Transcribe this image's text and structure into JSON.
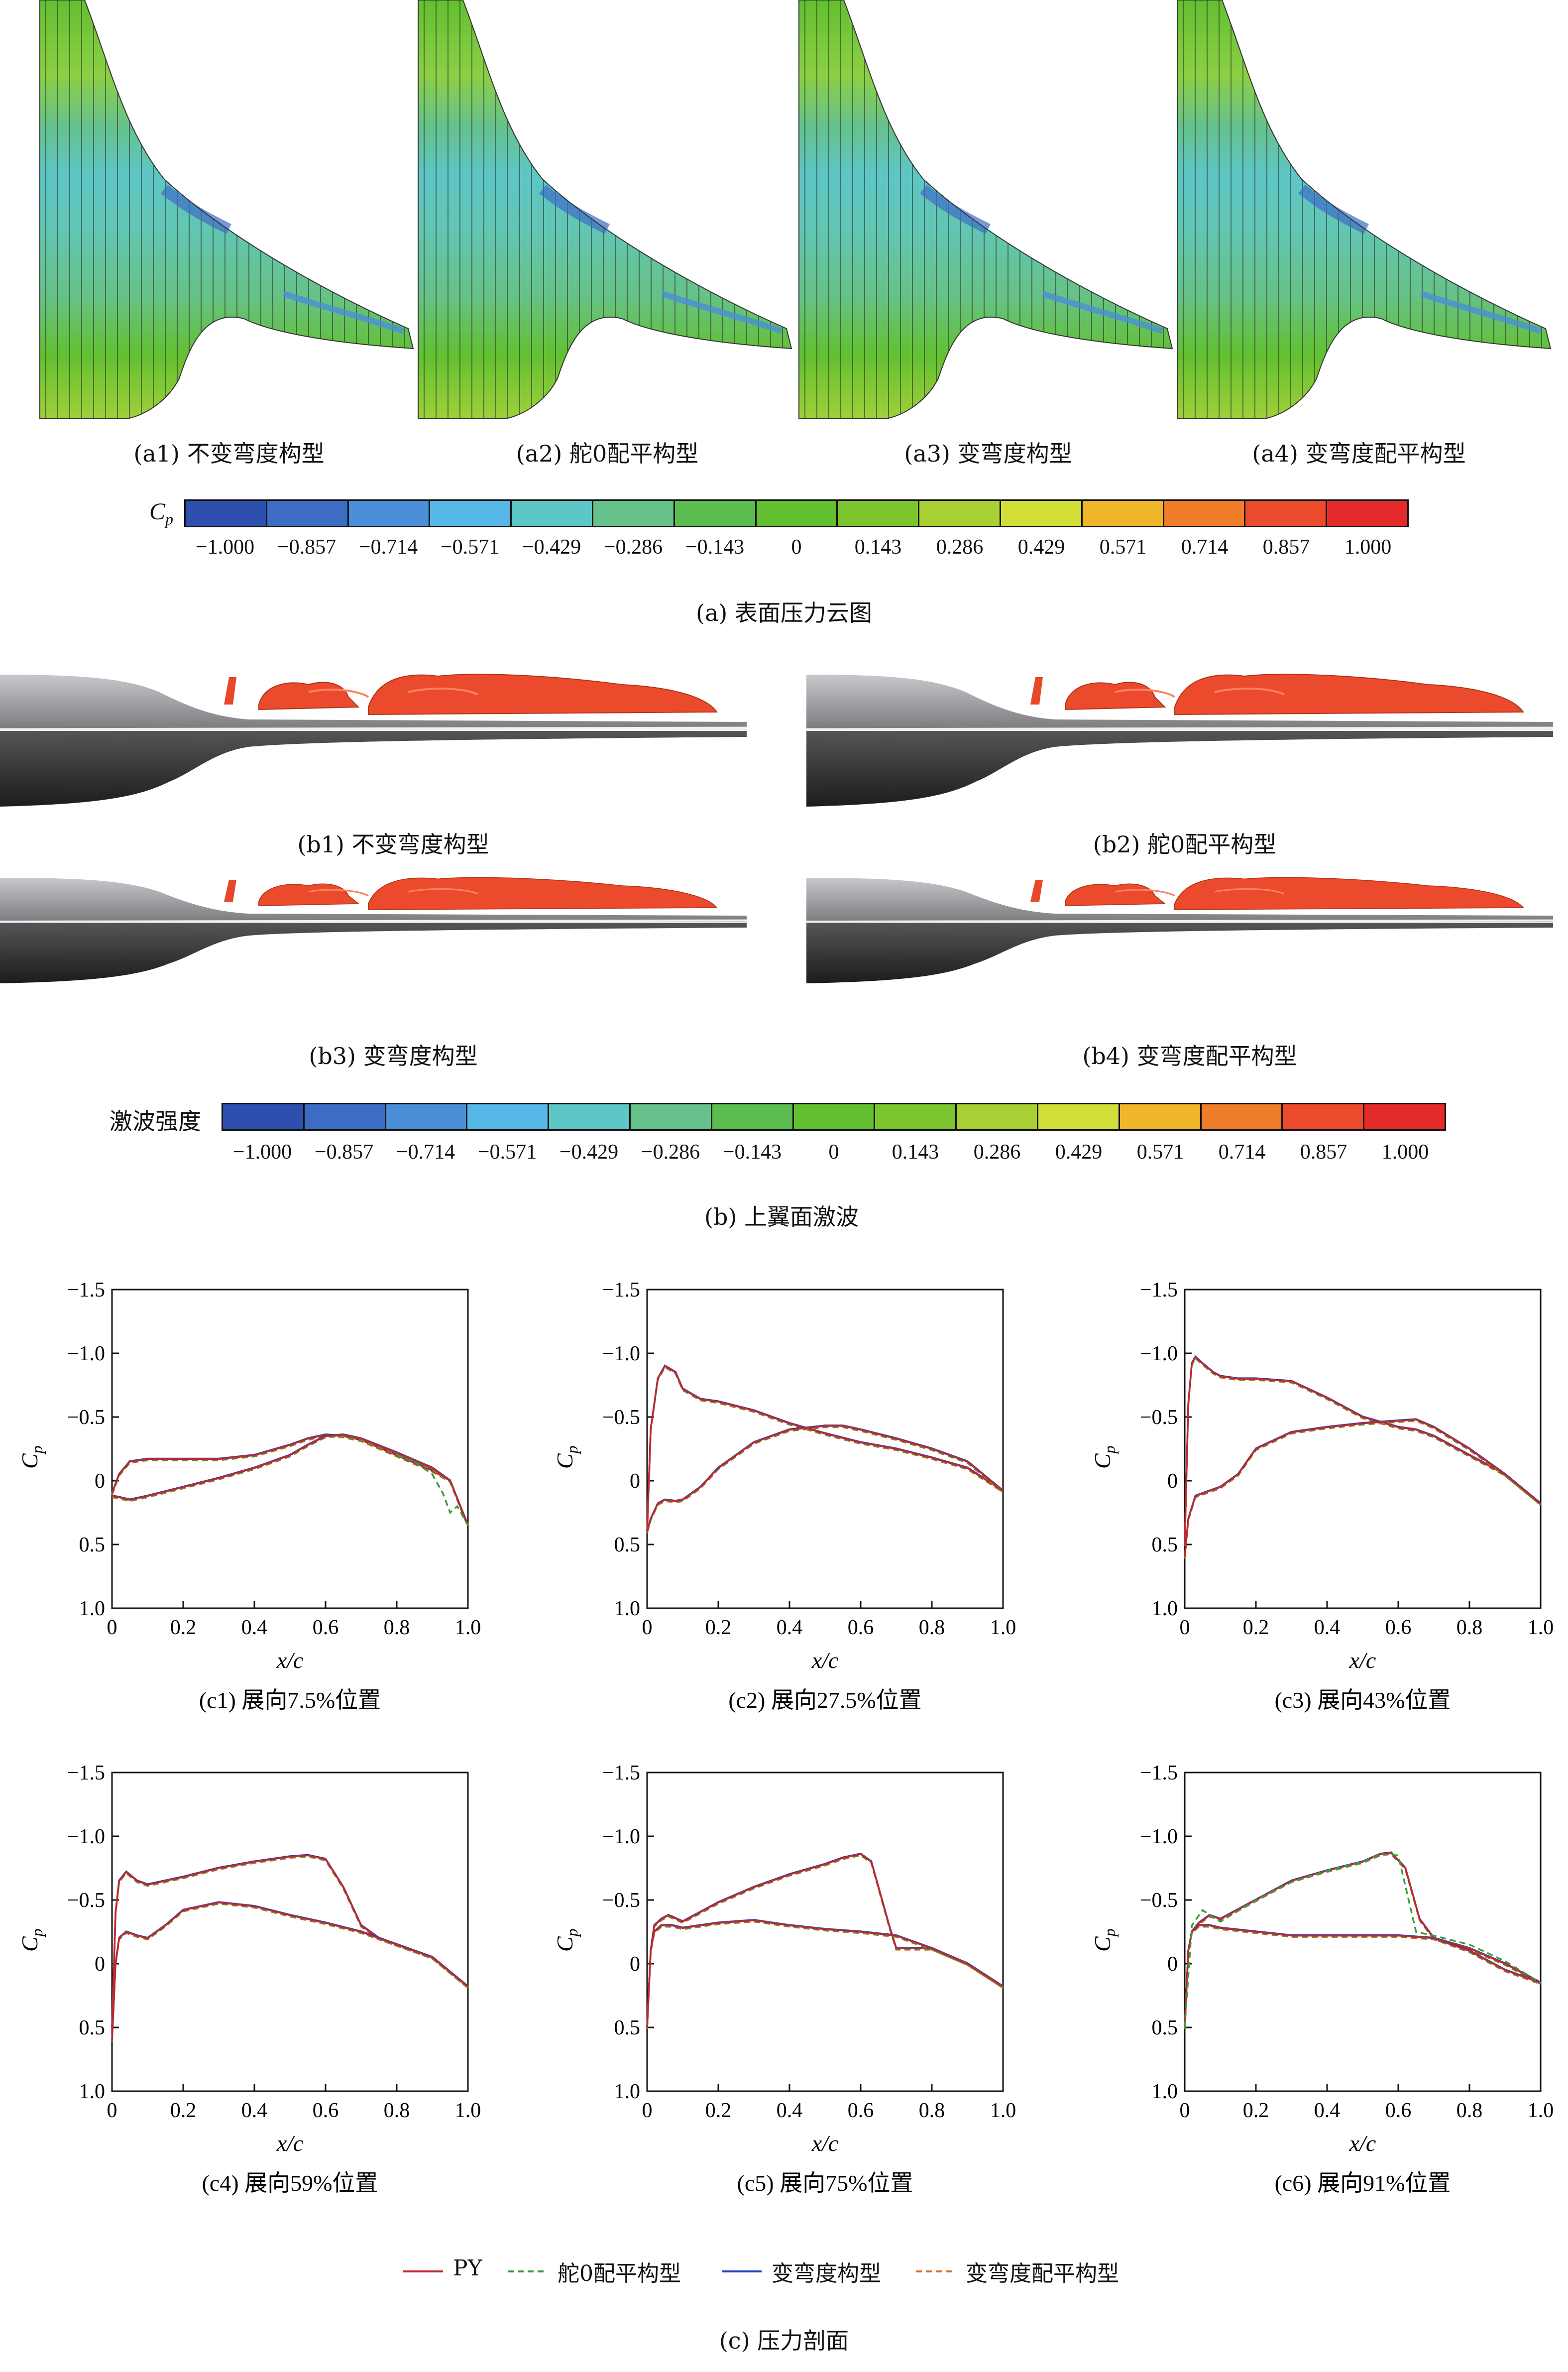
{
  "section_a": {
    "panels": [
      {
        "caption": "(a1) 不变弯度构型"
      },
      {
        "caption": "(a2) 舵0配平构型"
      },
      {
        "caption": "(a3) 变弯度构型"
      },
      {
        "caption": "(a4) 变弯度配平构型"
      }
    ],
    "colorbar": {
      "label": "C",
      "label_sub": "p",
      "ticks": [
        "−1.000",
        "−0.857",
        "−0.714",
        "−0.571",
        "−0.429",
        "−0.286",
        "−0.143",
        "0",
        "0.143",
        "0.286",
        "0.429",
        "0.571",
        "0.714",
        "0.857",
        "1.000"
      ],
      "colors": [
        "#2e4fb0",
        "#3d6cc4",
        "#4a8fd8",
        "#55b8e6",
        "#5dc6c6",
        "#66c28a",
        "#5bbd4f",
        "#62c030",
        "#7cc52e",
        "#a8d034",
        "#d2df38",
        "#f0b62a",
        "#f07d2a",
        "#ec4a2c",
        "#e42a2a"
      ]
    },
    "caption": "(a) 表面压力云图"
  },
  "section_b": {
    "panels": [
      {
        "caption": "(b1) 不变弯度构型"
      },
      {
        "caption": "(b2) 舵0配平构型"
      },
      {
        "caption": "(b3) 变弯度构型"
      },
      {
        "caption": "(b4) 变弯度配平构型"
      }
    ],
    "colorbar": {
      "label": "激波强度",
      "ticks": [
        "−1.000",
        "−0.857",
        "−0.714",
        "−0.571",
        "−0.429",
        "−0.286",
        "−0.143",
        "0",
        "0.143",
        "0.286",
        "0.429",
        "0.571",
        "0.714",
        "0.857",
        "1.000"
      ]
    },
    "caption": "(b) 上翼面激波"
  },
  "section_c": {
    "ylabel": "C",
    "ylabel_sub": "p",
    "xlabel": "x/c",
    "yticks": [
      "−1.5",
      "−1.0",
      "−0.5",
      "0",
      "0.5",
      "1.0"
    ],
    "xticks": [
      "0",
      "0.2",
      "0.4",
      "0.6",
      "0.8",
      "1.0"
    ],
    "legend": [
      {
        "name": "PY",
        "color": "#c0282c",
        "dash": ""
      },
      {
        "name": "舵0配平构型",
        "color": "#3a9a3a",
        "dash": "12,8"
      },
      {
        "name": "变弯度构型",
        "color": "#1f3fbf",
        "dash": ""
      },
      {
        "name": "变弯度配平构型",
        "color": "#e06a2a",
        "dash": "12,8"
      }
    ],
    "caption": "(c) 压力剖面"
  },
  "chart_data": [
    {
      "type": "line",
      "title": "(c1) 展向7.5%位置",
      "xlabel": "x/c",
      "ylabel": "Cp",
      "xlim": [
        0,
        1.0
      ],
      "ylim": [
        -1.5,
        1.0
      ],
      "y_inverted": true,
      "series": [
        {
          "name": "PY upper",
          "x": [
            0,
            0.02,
            0.05,
            0.1,
            0.2,
            0.3,
            0.4,
            0.5,
            0.55,
            0.6,
            0.65,
            0.7,
            0.8,
            0.9,
            0.95,
            1.0
          ],
          "y": [
            0.1,
            -0.05,
            -0.15,
            -0.17,
            -0.17,
            -0.17,
            -0.2,
            -0.28,
            -0.33,
            -0.36,
            -0.35,
            -0.32,
            -0.2,
            -0.08,
            0.0,
            0.35
          ]
        },
        {
          "name": "PY lower",
          "x": [
            0,
            0.02,
            0.05,
            0.1,
            0.2,
            0.3,
            0.4,
            0.5,
            0.55,
            0.6,
            0.65,
            0.7,
            0.8,
            0.9,
            0.95,
            1.0
          ],
          "y": [
            0.12,
            0.13,
            0.15,
            0.12,
            0.05,
            -0.02,
            -0.1,
            -0.2,
            -0.28,
            -0.35,
            -0.36,
            -0.33,
            -0.22,
            -0.1,
            0.0,
            0.35
          ]
        },
        {
          "name": "舵0配平构型 upper",
          "x": [
            0.8,
            0.85,
            0.9,
            0.93,
            0.95,
            0.97,
            1.0
          ],
          "y": [
            -0.2,
            -0.15,
            -0.05,
            0.1,
            0.25,
            0.2,
            0.35
          ]
        }
      ]
    },
    {
      "type": "line",
      "title": "(c2) 展向27.5%位置",
      "xlabel": "x/c",
      "ylabel": "Cp",
      "xlim": [
        0,
        1.0
      ],
      "ylim": [
        -1.5,
        1.0
      ],
      "y_inverted": true,
      "series": [
        {
          "name": "upper",
          "x": [
            0,
            0.01,
            0.03,
            0.05,
            0.08,
            0.1,
            0.15,
            0.2,
            0.3,
            0.4,
            0.5,
            0.6,
            0.7,
            0.8,
            0.9,
            1.0
          ],
          "y": [
            0.4,
            -0.4,
            -0.8,
            -0.9,
            -0.85,
            -0.72,
            -0.64,
            -0.62,
            -0.55,
            -0.45,
            -0.37,
            -0.3,
            -0.25,
            -0.18,
            -0.1,
            0.08
          ]
        },
        {
          "name": "lower",
          "x": [
            0,
            0.01,
            0.03,
            0.05,
            0.08,
            0.1,
            0.15,
            0.2,
            0.3,
            0.4,
            0.5,
            0.55,
            0.6,
            0.7,
            0.8,
            0.9,
            1.0
          ],
          "y": [
            0.4,
            0.3,
            0.18,
            0.15,
            0.16,
            0.15,
            0.05,
            -0.1,
            -0.3,
            -0.4,
            -0.43,
            -0.43,
            -0.4,
            -0.33,
            -0.25,
            -0.15,
            0.08
          ]
        }
      ]
    },
    {
      "type": "line",
      "title": "(c3) 展向43%位置",
      "xlabel": "x/c",
      "ylabel": "Cp",
      "xlim": [
        0,
        1.0
      ],
      "ylim": [
        -1.5,
        1.0
      ],
      "y_inverted": true,
      "series": [
        {
          "name": "upper",
          "x": [
            0,
            0.01,
            0.02,
            0.03,
            0.05,
            0.08,
            0.1,
            0.15,
            0.2,
            0.3,
            0.4,
            0.5,
            0.6,
            0.65,
            0.7,
            0.8,
            0.9,
            1.0
          ],
          "y": [
            0.5,
            -0.6,
            -0.92,
            -0.97,
            -0.92,
            -0.85,
            -0.82,
            -0.8,
            -0.8,
            -0.78,
            -0.65,
            -0.5,
            -0.42,
            -0.4,
            -0.35,
            -0.2,
            -0.05,
            0.18
          ]
        },
        {
          "name": "lower",
          "x": [
            0,
            0.01,
            0.03,
            0.05,
            0.1,
            0.15,
            0.2,
            0.3,
            0.4,
            0.5,
            0.6,
            0.65,
            0.7,
            0.8,
            0.9,
            1.0
          ],
          "y": [
            0.6,
            0.3,
            0.12,
            0.1,
            0.05,
            -0.05,
            -0.25,
            -0.38,
            -0.42,
            -0.45,
            -0.47,
            -0.48,
            -0.42,
            -0.25,
            -0.05,
            0.18
          ]
        }
      ]
    },
    {
      "type": "line",
      "title": "(c4) 展向59%位置",
      "xlabel": "x/c",
      "ylabel": "Cp",
      "xlim": [
        0,
        1.0
      ],
      "ylim": [
        -1.5,
        1.0
      ],
      "y_inverted": true,
      "series": [
        {
          "name": "upper",
          "x": [
            0,
            0.01,
            0.02,
            0.04,
            0.07,
            0.1,
            0.2,
            0.3,
            0.4,
            0.5,
            0.55,
            0.6,
            0.65,
            0.7,
            0.75,
            0.8,
            0.9,
            1.0
          ],
          "y": [
            0.5,
            -0.4,
            -0.65,
            -0.72,
            -0.65,
            -0.62,
            -0.68,
            -0.75,
            -0.8,
            -0.84,
            -0.85,
            -0.82,
            -0.6,
            -0.3,
            -0.2,
            -0.15,
            -0.05,
            0.18
          ]
        },
        {
          "name": "lower",
          "x": [
            0,
            0.01,
            0.02,
            0.04,
            0.07,
            0.1,
            0.15,
            0.2,
            0.3,
            0.4,
            0.5,
            0.6,
            0.7,
            0.8,
            0.9,
            1.0
          ],
          "y": [
            0.6,
            0.0,
            -0.2,
            -0.25,
            -0.22,
            -0.2,
            -0.3,
            -0.42,
            -0.48,
            -0.45,
            -0.38,
            -0.32,
            -0.25,
            -0.15,
            -0.05,
            0.18
          ]
        }
      ]
    },
    {
      "type": "line",
      "title": "(c5) 展向75%位置",
      "xlabel": "x/c",
      "ylabel": "Cp",
      "xlim": [
        0,
        1.0
      ],
      "ylim": [
        -1.5,
        1.0
      ],
      "y_inverted": true,
      "series": [
        {
          "name": "upper",
          "x": [
            0,
            0.01,
            0.02,
            0.04,
            0.06,
            0.1,
            0.2,
            0.3,
            0.4,
            0.5,
            0.55,
            0.6,
            0.63,
            0.68,
            0.7,
            0.8,
            0.9,
            1.0
          ],
          "y": [
            0.5,
            -0.1,
            -0.3,
            -0.35,
            -0.38,
            -0.33,
            -0.48,
            -0.6,
            -0.7,
            -0.78,
            -0.83,
            -0.86,
            -0.8,
            -0.3,
            -0.12,
            -0.12,
            0.0,
            0.18
          ]
        },
        {
          "name": "lower",
          "x": [
            0,
            0.01,
            0.02,
            0.04,
            0.07,
            0.1,
            0.2,
            0.3,
            0.4,
            0.5,
            0.6,
            0.7,
            0.8,
            0.9,
            1.0
          ],
          "y": [
            0.5,
            -0.1,
            -0.25,
            -0.3,
            -0.3,
            -0.28,
            -0.32,
            -0.34,
            -0.3,
            -0.27,
            -0.25,
            -0.22,
            -0.12,
            0.0,
            0.18
          ]
        }
      ]
    },
    {
      "type": "line",
      "title": "(c6) 展向91%位置",
      "xlabel": "x/c",
      "ylabel": "Cp",
      "xlim": [
        0,
        1.0
      ],
      "ylim": [
        -1.5,
        1.0
      ],
      "y_inverted": true,
      "series": [
        {
          "name": "upper",
          "x": [
            0,
            0.01,
            0.02,
            0.04,
            0.07,
            0.1,
            0.2,
            0.3,
            0.4,
            0.5,
            0.55,
            0.58,
            0.62,
            0.66,
            0.7,
            0.8,
            0.9,
            1.0
          ],
          "y": [
            0.5,
            -0.1,
            -0.25,
            -0.32,
            -0.38,
            -0.35,
            -0.5,
            -0.65,
            -0.73,
            -0.8,
            -0.86,
            -0.87,
            -0.75,
            -0.35,
            -0.2,
            -0.12,
            0.0,
            0.15
          ]
        },
        {
          "name": "lower",
          "x": [
            0,
            0.01,
            0.02,
            0.04,
            0.07,
            0.1,
            0.2,
            0.3,
            0.4,
            0.5,
            0.6,
            0.7,
            0.8,
            0.9,
            1.0
          ],
          "y": [
            0.5,
            -0.1,
            -0.25,
            -0.3,
            -0.3,
            -0.28,
            -0.25,
            -0.22,
            -0.22,
            -0.22,
            -0.22,
            -0.2,
            -0.1,
            0.05,
            0.15
          ]
        },
        {
          "name": "舵0配平构型 upper",
          "x": [
            0,
            0.02,
            0.05,
            0.1,
            0.2,
            0.3,
            0.4,
            0.5,
            0.55,
            0.6,
            0.65,
            0.7,
            0.8,
            0.9,
            1.0
          ],
          "y": [
            0.5,
            -0.3,
            -0.42,
            -0.33,
            -0.5,
            -0.64,
            -0.73,
            -0.8,
            -0.86,
            -0.85,
            -0.25,
            -0.22,
            -0.15,
            -0.02,
            0.15
          ]
        }
      ]
    }
  ]
}
